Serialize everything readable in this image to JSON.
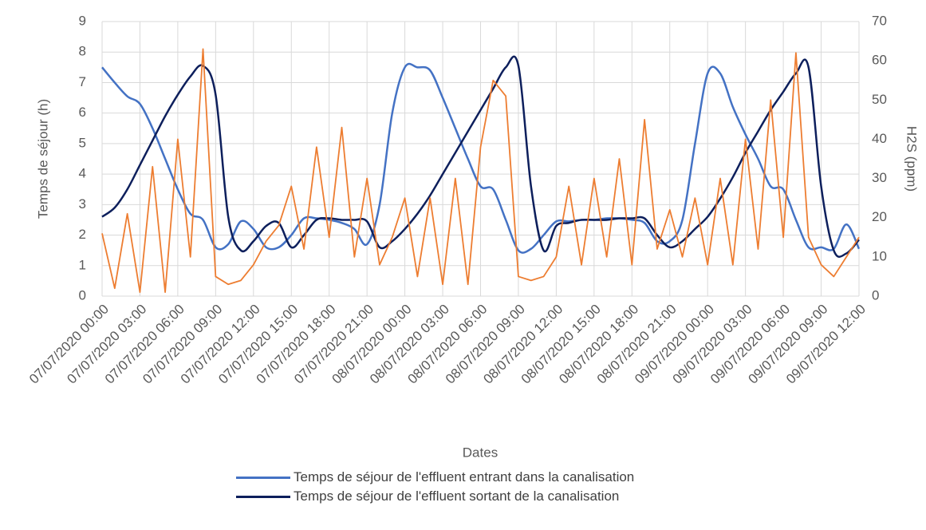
{
  "chart_data": {
    "type": "line",
    "x_label": "Dates",
    "y_label": "Temps de séjour (h)",
    "y2_label": "H2S (ppm)",
    "categories": [
      "07/07/2020 00:00",
      null,
      null,
      "07/07/2020 03:00",
      null,
      null,
      "07/07/2020 06:00",
      null,
      null,
      "07/07/2020 09:00",
      null,
      null,
      "07/07/2020 12:00",
      null,
      null,
      "07/07/2020 15:00",
      null,
      null,
      "07/07/2020 18:00",
      null,
      null,
      "07/07/2020 21:00",
      null,
      null,
      "08/07/2020 00:00",
      null,
      null,
      "08/07/2020 03:00",
      null,
      null,
      "08/07/2020 06:00",
      null,
      null,
      "08/07/2020 09:00",
      null,
      null,
      "08/07/2020 12:00",
      null,
      null,
      "08/07/2020 15:00",
      null,
      null,
      "08/07/2020 18:00",
      null,
      null,
      "08/07/2020 21:00",
      null,
      null,
      "09/07/2020 00:00",
      null,
      null,
      "09/07/2020 03:00",
      null,
      null,
      "09/07/2020 06:00",
      null,
      null,
      "09/07/2020 09:00",
      null,
      null,
      "09/07/2020 12:00"
    ],
    "series": [
      {
        "name": "Temps de séjour de l'effluent entrant dans la canalisation",
        "color": "#4472c4",
        "smooth": true,
        "values": [
          7.5,
          7.0,
          6.55,
          6.3,
          5.5,
          4.5,
          3.5,
          2.7,
          2.5,
          1.6,
          1.7,
          2.45,
          2.2,
          1.6,
          1.6,
          2.0,
          2.55,
          2.55,
          2.5,
          2.4,
          2.2,
          1.7,
          3.0,
          6.0,
          7.5,
          7.5,
          7.4,
          6.5,
          5.5,
          4.5,
          3.6,
          3.5,
          2.5,
          1.5,
          1.55,
          2.0,
          2.45,
          2.45,
          2.5,
          2.5,
          2.55,
          2.55,
          2.5,
          2.4,
          1.8,
          1.8,
          2.5,
          5.0,
          7.3,
          7.3,
          6.2,
          5.3,
          4.5,
          3.6,
          3.5,
          2.5,
          1.6,
          1.6,
          1.55,
          2.35,
          1.55
        ]
      },
      {
        "name": "Temps de séjour de l'effluent sortant de la canalisation",
        "color": "#0d1f5c",
        "smooth": true,
        "values": [
          2.6,
          2.9,
          3.5,
          4.3,
          5.1,
          5.9,
          6.6,
          7.2,
          7.55,
          6.6,
          2.6,
          1.5,
          1.8,
          2.3,
          2.4,
          1.6,
          2.0,
          2.5,
          2.55,
          2.5,
          2.5,
          2.45,
          1.6,
          1.8,
          2.2,
          2.7,
          3.3,
          4.0,
          4.7,
          5.4,
          6.1,
          6.8,
          7.5,
          7.55,
          3.6,
          1.5,
          2.3,
          2.4,
          2.5,
          2.5,
          2.5,
          2.55,
          2.55,
          2.55,
          2.0,
          1.6,
          1.8,
          2.2,
          2.6,
          3.2,
          3.9,
          4.7,
          5.4,
          6.1,
          6.7,
          7.3,
          7.5,
          3.6,
          1.5,
          1.4,
          1.85
        ]
      },
      {
        "color": "#ed7d31",
        "axis": "y2",
        "smooth": false,
        "values": [
          16,
          2,
          21,
          1,
          33,
          1,
          40,
          10,
          63,
          5,
          3,
          4,
          8,
          14,
          18,
          28,
          12,
          38,
          15,
          43,
          10,
          30,
          8,
          15,
          25,
          5,
          25,
          3,
          30,
          3,
          38,
          55,
          51,
          5,
          4,
          5,
          10,
          28,
          8,
          30,
          10,
          35,
          8,
          45,
          12,
          22,
          10,
          25,
          8,
          30,
          8,
          40,
          12,
          50,
          15,
          62,
          15,
          8,
          5,
          10,
          15
        ]
      }
    ],
    "ylim": [
      0,
      9
    ],
    "yticks": [
      0,
      1,
      2,
      3,
      4,
      5,
      6,
      7,
      8,
      9
    ],
    "y2lim": [
      0,
      70
    ],
    "y2ticks": [
      0,
      10,
      20,
      30,
      40,
      50,
      60,
      70
    ],
    "grid": true
  }
}
